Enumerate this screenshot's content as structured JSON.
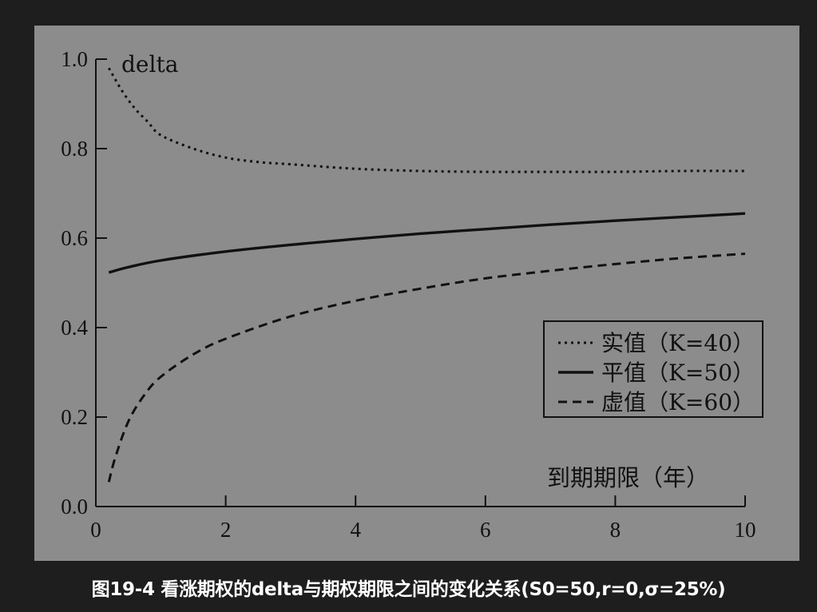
{
  "figure": {
    "caption": "图19-4 看涨期权的delta与期权期限之间的变化关系(S0=50,r=0,σ=25%)"
  },
  "chart_data": {
    "type": "line",
    "title": "",
    "xlabel": "到期期限（年）",
    "ylabel": "delta",
    "xlim": [
      0,
      10
    ],
    "ylim": [
      0,
      1
    ],
    "xticks": [
      "0",
      "2",
      "4",
      "6",
      "8",
      "10"
    ],
    "yticks": [
      "0.0",
      "0.2",
      "0.4",
      "0.6",
      "0.8",
      "1.0"
    ],
    "grid": false,
    "legend_position": "lower-right",
    "series": [
      {
        "name": "实值（K=40）",
        "style": "dotted",
        "x": [
          0.2,
          0.4,
          0.6,
          0.8,
          1,
          1.5,
          2,
          2.5,
          3,
          4,
          5,
          6,
          7,
          8,
          9,
          10
        ],
        "y": [
          0.98,
          0.93,
          0.89,
          0.86,
          0.83,
          0.8,
          0.78,
          0.77,
          0.765,
          0.755,
          0.75,
          0.748,
          0.748,
          0.748,
          0.75,
          0.75
        ]
      },
      {
        "name": "平值（K=50）",
        "style": "solid",
        "x": [
          0.2,
          0.5,
          1,
          2,
          3,
          4,
          5,
          6,
          7,
          8,
          9,
          10
        ],
        "y": [
          0.523,
          0.535,
          0.55,
          0.57,
          0.585,
          0.598,
          0.61,
          0.62,
          0.63,
          0.639,
          0.647,
          0.655
        ]
      },
      {
        "name": "虚值（K=60）",
        "style": "dashed",
        "x": [
          0.2,
          0.3,
          0.5,
          0.75,
          1,
          1.5,
          2,
          3,
          4,
          5,
          6,
          7,
          8,
          9,
          10
        ],
        "y": [
          0.055,
          0.11,
          0.19,
          0.25,
          0.29,
          0.34,
          0.375,
          0.425,
          0.46,
          0.487,
          0.51,
          0.527,
          0.542,
          0.555,
          0.565
        ]
      }
    ]
  }
}
